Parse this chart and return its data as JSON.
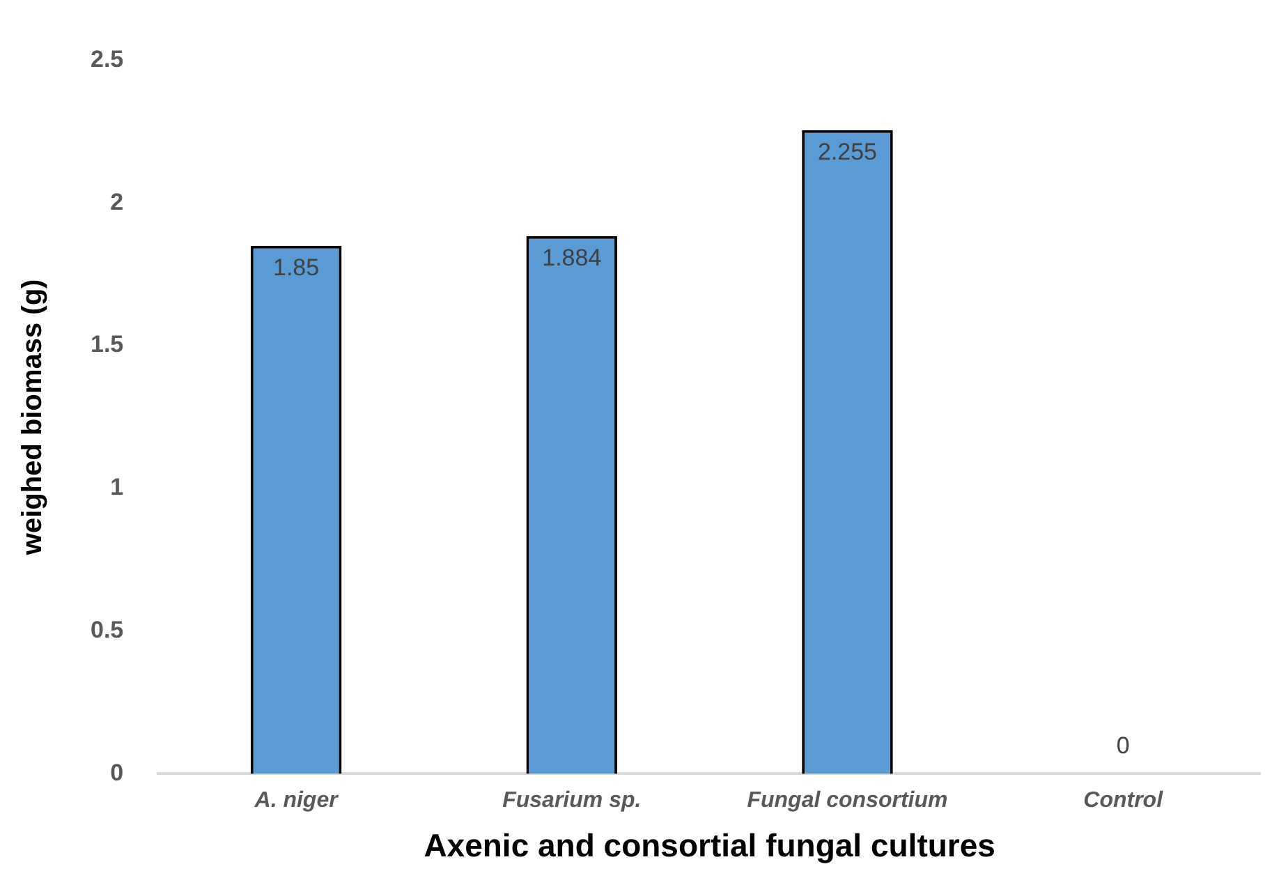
{
  "chart_data": {
    "type": "bar",
    "xlabel": "Axenic and consortial fungal cultures",
    "ylabel": "weighed biomass (g)",
    "categories": [
      "A. niger",
      "Fusarium sp.",
      "Fungal consortium",
      "Control"
    ],
    "values": [
      1.85,
      1.884,
      2.255,
      0
    ],
    "color": "#5b9bd5",
    "ylim": [
      0,
      2.5
    ],
    "yticks": [
      0,
      0.5,
      1,
      1.5,
      2,
      2.5
    ],
    "grid": false,
    "data_labels": true
  }
}
